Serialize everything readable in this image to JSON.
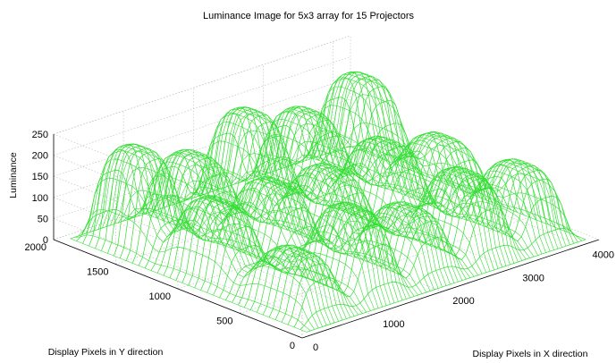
{
  "chart_data": {
    "type": "surface",
    "title": "Luminance Image for 5x3 array for 15 Projectors",
    "xlabel": "Display Pixels in X direction",
    "ylabel": "Display Pixels in Y direction",
    "zlabel": "Luminance",
    "xlim": [
      0,
      4250
    ],
    "ylim": [
      0,
      2000
    ],
    "zlim": [
      0,
      250
    ],
    "xticks": [
      "0",
      "1000",
      "2000",
      "3000",
      "4000"
    ],
    "yticks": [
      "0",
      "500",
      "1000",
      "1500",
      "2000"
    ],
    "zticks": [
      "0",
      "50",
      "100",
      "150",
      "200",
      "250"
    ],
    "grid": true,
    "mesh_color": "#33dd33",
    "projector_array": {
      "columns": 5,
      "rows": 3,
      "count": 15
    }
  }
}
